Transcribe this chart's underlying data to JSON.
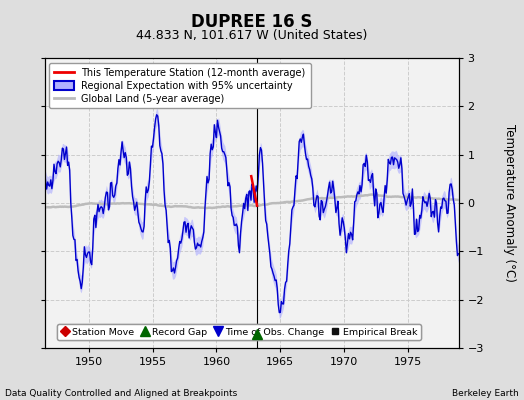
{
  "title": "DUPREE 16 S",
  "subtitle": "44.833 N, 101.617 W (United States)",
  "ylabel": "Temperature Anomaly (°C)",
  "xlabel_left": "Data Quality Controlled and Aligned at Breakpoints",
  "xlabel_right": "Berkeley Earth",
  "xlim": [
    1946.5,
    1979.0
  ],
  "ylim": [
    -3,
    3
  ],
  "yticks": [
    -3,
    -2,
    -1,
    0,
    1,
    2,
    3
  ],
  "xticks": [
    1950,
    1955,
    1960,
    1965,
    1970,
    1975
  ],
  "bg_color": "#dedede",
  "plot_bg_color": "#f2f2f2",
  "regional_line_color": "#0000cc",
  "regional_fill_color": "#b0b0ff",
  "station_line_color": "#ee0000",
  "global_line_color": "#bbbbbb",
  "vertical_line_x": 1963.2,
  "record_gap_x": 1963.2,
  "legend_items": [
    {
      "label": "This Temperature Station (12-month average)",
      "color": "#ee0000",
      "lw": 2
    },
    {
      "label": "Regional Expectation with 95% uncertainty",
      "color": "#0000cc",
      "fill_color": "#b0b0ff"
    },
    {
      "label": "Global Land (5-year average)",
      "color": "#bbbbbb",
      "lw": 2
    }
  ],
  "bottom_legend": [
    {
      "label": "Station Move",
      "color": "#cc0000",
      "marker": "D"
    },
    {
      "label": "Record Gap",
      "color": "#006600",
      "marker": "^"
    },
    {
      "label": "Time of Obs. Change",
      "color": "#0000cc",
      "marker": "v"
    },
    {
      "label": "Empirical Break",
      "color": "#111111",
      "marker": "s"
    }
  ],
  "title_fontsize": 12,
  "subtitle_fontsize": 9,
  "tick_fontsize": 8,
  "label_fontsize": 7.5
}
